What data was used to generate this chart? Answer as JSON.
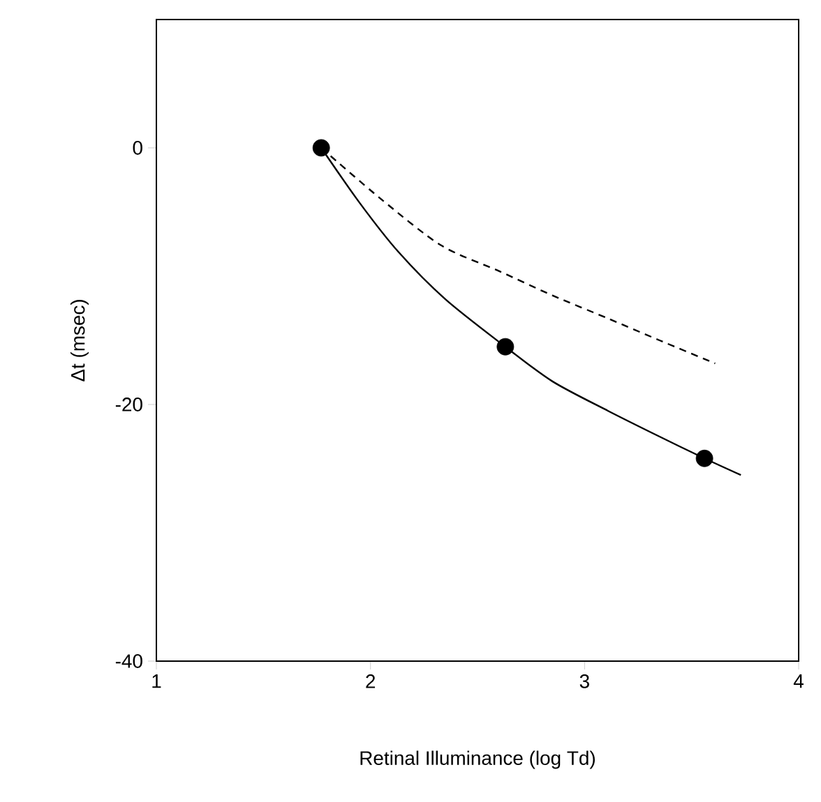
{
  "chart_data": {
    "type": "line",
    "xlabel": "Retinal Illuminance (log Td)",
    "ylabel": "Δt (msec)",
    "xlim": [
      1,
      4
    ],
    "ylim": [
      -40,
      10
    ],
    "xticks": [
      1,
      2,
      3,
      4
    ],
    "yticks": [
      -40,
      -20,
      0
    ],
    "grid": false,
    "series": [
      {
        "type": "scatter",
        "marker": "circle",
        "color": "#000000",
        "x": [
          1.77,
          2.63,
          3.56
        ],
        "values": [
          0,
          -15.5,
          -24.2
        ]
      },
      {
        "line_style": "solid",
        "marker": "none",
        "color": "#000000",
        "x": [
          1.77,
          1.95,
          2.13,
          2.35,
          2.63,
          2.85,
          3.11,
          3.35,
          3.56,
          3.73
        ],
        "values": [
          0,
          -4.3,
          -8.1,
          -11.8,
          -15.5,
          -18.2,
          -20.5,
          -22.5,
          -24.2,
          -25.5
        ]
      },
      {
        "line_style": "dashed",
        "marker": "none",
        "color": "#000000",
        "x": [
          1.77,
          2.05,
          2.33,
          2.6,
          2.85,
          3.11,
          3.35,
          3.61
        ],
        "values": [
          0,
          -4.0,
          -7.6,
          -9.6,
          -11.5,
          -13.3,
          -15.0,
          -16.8
        ]
      }
    ]
  }
}
